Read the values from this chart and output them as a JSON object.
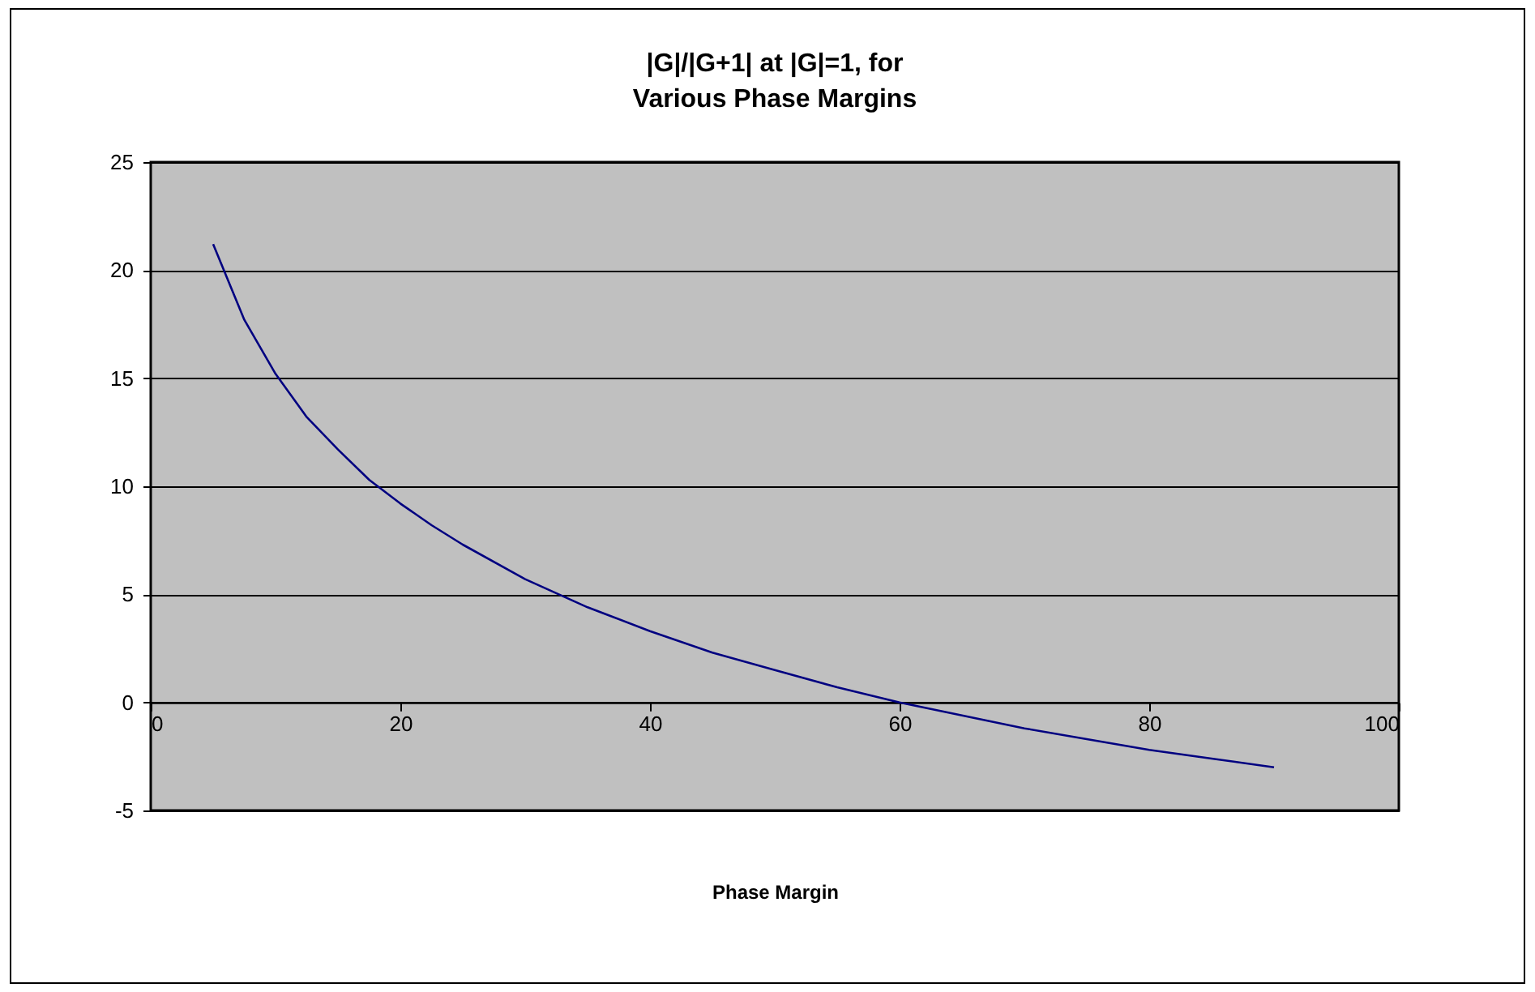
{
  "chart_data": {
    "type": "line",
    "title": "|G|/|G+1| at |G|=1, for\nVarious Phase Margins",
    "xlabel": "Phase Margin",
    "x": [
      5,
      7.5,
      10,
      12.5,
      15,
      17.5,
      20,
      22.5,
      25,
      30,
      35,
      40,
      45,
      50,
      55,
      60,
      65,
      70,
      75,
      80,
      85,
      90
    ],
    "series": [
      {
        "color": "#000080",
        "values": [
          21.2,
          17.7,
          15.2,
          13.2,
          11.7,
          10.3,
          9.2,
          8.2,
          7.3,
          5.7,
          4.4,
          3.3,
          2.3,
          1.5,
          0.7,
          0,
          -0.6,
          -1.2,
          -1.7,
          -2.2,
          -2.6,
          -3.0
        ]
      }
    ],
    "xlim": [
      0,
      100
    ],
    "xticks": [
      0,
      20,
      40,
      60,
      80,
      100
    ],
    "ylim": [
      -5,
      25
    ],
    "yticks": [
      -5,
      0,
      5,
      10,
      15,
      20,
      25
    ],
    "grid": "y",
    "legend": false,
    "marker": "none",
    "line_style": "solid"
  }
}
